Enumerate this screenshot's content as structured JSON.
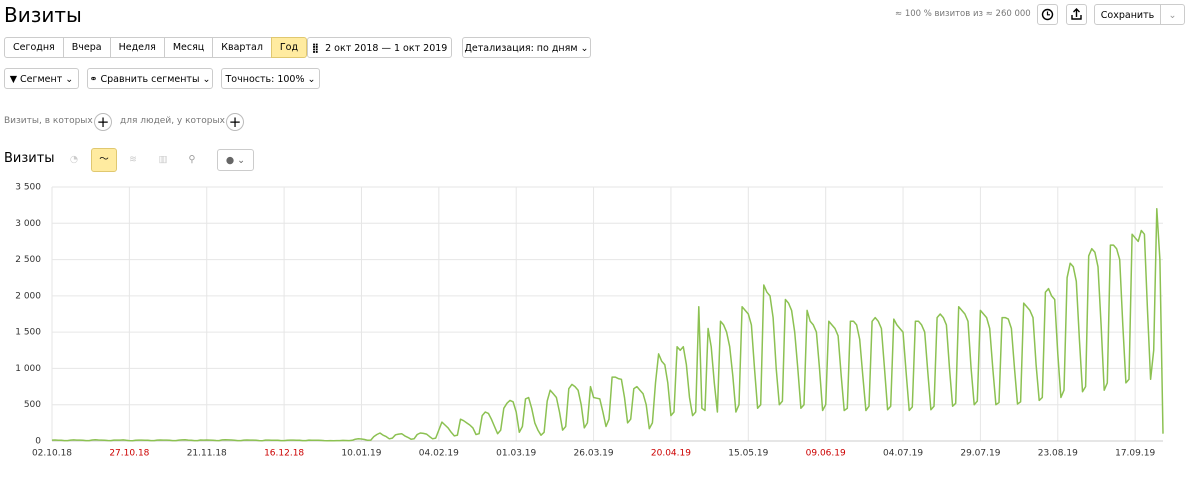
{
  "header": {
    "title": "Визиты",
    "sample": "≈ 100 % визитов из ≈ 260 000",
    "save": "Сохранить"
  },
  "periods": [
    "Сегодня",
    "Вчера",
    "Неделя",
    "Месяц",
    "Квартал",
    "Год"
  ],
  "date_range": "2 окт 2018 — 1 окт 2019",
  "detail": "Детализация: по дням",
  "segment": "Сегмент",
  "compare": "Сравнить сегменты",
  "accuracy": "Точность: 100%",
  "conditions": {
    "visits": "Визиты, в которых",
    "people": "для людей, у которых"
  },
  "chart_data": {
    "type": "line",
    "title": "Визиты",
    "color": "#8cc152",
    "grid": true,
    "xlim": [
      0,
      359
    ],
    "ylim": [
      0,
      3500
    ],
    "yticks": [
      0,
      500,
      {
        "value": 1000,
        "label": "1 000"
      },
      {
        "value": 1500,
        "label": "1 500"
      },
      {
        "value": 2000,
        "label": "2 000"
      },
      {
        "value": 2500,
        "label": "2 500"
      },
      {
        "value": 3000,
        "label": "3 000"
      },
      {
        "value": 3500,
        "label": "3 500"
      }
    ],
    "xticks": [
      {
        "value": 0,
        "label": "02.10.18",
        "color": "#333333"
      },
      {
        "value": 25,
        "label": "27.10.18",
        "color": "#cc0000"
      },
      {
        "value": 50,
        "label": "21.11.18",
        "color": "#333333"
      },
      {
        "value": 75,
        "label": "16.12.18",
        "color": "#cc0000"
      },
      {
        "value": 100,
        "label": "10.01.19",
        "color": "#333333"
      },
      {
        "value": 125,
        "label": "04.02.19",
        "color": "#333333"
      },
      {
        "value": 150,
        "label": "01.03.19",
        "color": "#333333"
      },
      {
        "value": 175,
        "label": "26.03.19",
        "color": "#333333"
      },
      {
        "value": 200,
        "label": "20.04.19",
        "color": "#cc0000"
      },
      {
        "value": 225,
        "label": "15.05.19",
        "color": "#333333"
      },
      {
        "value": 250,
        "label": "09.06.19",
        "color": "#cc0000"
      },
      {
        "value": 275,
        "label": "04.07.19",
        "color": "#333333"
      },
      {
        "value": 300,
        "label": "29.07.19",
        "color": "#333333"
      },
      {
        "value": 325,
        "label": "23.08.19",
        "color": "#333333"
      },
      {
        "value": 350,
        "label": "17.09.19",
        "color": "#333333"
      }
    ],
    "x": [
      0,
      1,
      2,
      3,
      4,
      5,
      6,
      7,
      8,
      9,
      10,
      11,
      12,
      13,
      14,
      15,
      16,
      17,
      18,
      19,
      20,
      21,
      22,
      23,
      24,
      25,
      26,
      27,
      28,
      29,
      30,
      31,
      32,
      33,
      34,
      35,
      36,
      37,
      38,
      39,
      40,
      41,
      42,
      43,
      44,
      45,
      46,
      47,
      48,
      49,
      50,
      51,
      52,
      53,
      54,
      55,
      56,
      57,
      58,
      59,
      60,
      61,
      62,
      63,
      64,
      65,
      66,
      67,
      68,
      69,
      70,
      71,
      72,
      73,
      74,
      75,
      76,
      77,
      78,
      79,
      80,
      81,
      82,
      83,
      84,
      85,
      86,
      87,
      88,
      89,
      90,
      91,
      92,
      93,
      94,
      95,
      96,
      97,
      98,
      99,
      100,
      101,
      102,
      103,
      104,
      105,
      106,
      107,
      108,
      109,
      110,
      111,
      112,
      113,
      114,
      115,
      116,
      117,
      118,
      119,
      120,
      121,
      122,
      123,
      124,
      125,
      126,
      127,
      128,
      129,
      130,
      131,
      132,
      133,
      134,
      135,
      136,
      137,
      138,
      139,
      140,
      141,
      142,
      143,
      144,
      145,
      146,
      147,
      148,
      149,
      150,
      151,
      152,
      153,
      154,
      155,
      156,
      157,
      158,
      159,
      160,
      161,
      162,
      163,
      164,
      165,
      166,
      167,
      168,
      169,
      170,
      171,
      172,
      173,
      174,
      175,
      176,
      177,
      178,
      179,
      180,
      181,
      182,
      183,
      184,
      185,
      186,
      187,
      188,
      189,
      190,
      191,
      192,
      193,
      194,
      195,
      196,
      197,
      198,
      199,
      200,
      201,
      202,
      203,
      204,
      205,
      206,
      207,
      208,
      209,
      210,
      211,
      212,
      213,
      214,
      215,
      216,
      217,
      218,
      219,
      220,
      221,
      222,
      223,
      224,
      225,
      226,
      227,
      228,
      229,
      230,
      231,
      232,
      233,
      234,
      235,
      236,
      237,
      238,
      239,
      240,
      241,
      242,
      243,
      244,
      245,
      246,
      247,
      248,
      249,
      250,
      251,
      252,
      253,
      254,
      255,
      256,
      257,
      258,
      259,
      260,
      261,
      262,
      263,
      264,
      265,
      266,
      267,
      268,
      269,
      270,
      271,
      272,
      273,
      274,
      275,
      276,
      277,
      278,
      279,
      280,
      281,
      282,
      283,
      284,
      285,
      286,
      287,
      288,
      289,
      290,
      291,
      292,
      293,
      294,
      295,
      296,
      297,
      298,
      299,
      300,
      301,
      302,
      303,
      304,
      305,
      306,
      307,
      308,
      309,
      310,
      311,
      312,
      313,
      314,
      315,
      316,
      317,
      318,
      319,
      320,
      321,
      322,
      323,
      324,
      325,
      326,
      327,
      328,
      329,
      330,
      331,
      332,
      333,
      334,
      335,
      336,
      337,
      338,
      339,
      340,
      341,
      342,
      343,
      344,
      345,
      346,
      347,
      348,
      349,
      350,
      351,
      352,
      353,
      354,
      355,
      356,
      357,
      358,
      359
    ],
    "values": [
      12,
      14,
      11,
      9,
      5,
      6,
      13,
      15,
      13,
      12,
      10,
      6,
      5,
      14,
      16,
      14,
      13,
      11,
      7,
      6,
      12,
      13,
      12,
      15,
      10,
      5,
      4,
      11,
      12,
      13,
      11,
      9,
      6,
      5,
      12,
      14,
      12,
      13,
      10,
      5,
      6,
      13,
      15,
      16,
      12,
      11,
      6,
      5,
      14,
      13,
      14,
      12,
      10,
      7,
      6,
      15,
      16,
      15,
      14,
      11,
      6,
      5,
      13,
      14,
      13,
      12,
      10,
      5,
      4,
      12,
      12,
      11,
      10,
      9,
      6,
      5,
      11,
      13,
      12,
      11,
      10,
      5,
      6,
      12,
      11,
      10,
      9,
      8,
      5,
      4,
      6,
      3,
      5,
      6,
      8,
      7,
      6,
      10,
      25,
      30,
      28,
      20,
      10,
      12,
      60,
      90,
      110,
      80,
      60,
      30,
      40,
      85,
      95,
      100,
      70,
      50,
      25,
      30,
      90,
      110,
      105,
      95,
      60,
      30,
      40,
      150,
      260,
      220,
      180,
      120,
      70,
      80,
      300,
      280,
      250,
      220,
      180,
      90,
      100,
      350,
      400,
      380,
      300,
      200,
      100,
      150,
      450,
      520,
      560,
      540,
      400,
      120,
      200,
      580,
      600,
      450,
      250,
      150,
      80,
      120,
      550,
      700,
      650,
      600,
      400,
      150,
      200,
      720,
      780,
      750,
      700,
      500,
      180,
      250,
      750,
      600,
      590,
      580,
      400,
      200,
      300,
      880,
      880,
      860,
      850,
      600,
      250,
      300,
      720,
      750,
      700,
      650,
      500,
      170,
      250,
      800,
      1200,
      1100,
      1050,
      800,
      350,
      400,
      1300,
      1250,
      1300,
      1050,
      600,
      350,
      400,
      1850,
      450,
      420,
      1550,
      1300,
      800,
      400,
      1650,
      1600,
      1500,
      1300,
      900,
      400,
      500,
      1850,
      1800,
      1750,
      1600,
      1000,
      450,
      500,
      2150,
      2050,
      2000,
      1700,
      1000,
      500,
      550,
      1950,
      1900,
      1800,
      1500,
      1000,
      450,
      500,
      1800,
      1650,
      1600,
      1500,
      1000,
      420,
      500,
      1650,
      1600,
      1550,
      1450,
      900,
      420,
      450,
      1650,
      1650,
      1600,
      1400,
      900,
      420,
      480,
      1650,
      1700,
      1650,
      1550,
      1000,
      430,
      480,
      1680,
      1600,
      1550,
      1500,
      950,
      420,
      470,
      1650,
      1650,
      1600,
      1500,
      950,
      430,
      480,
      1700,
      1750,
      1700,
      1600,
      1000,
      480,
      520,
      1850,
      1800,
      1750,
      1650,
      1000,
      500,
      550,
      1800,
      1750,
      1700,
      1550,
      1000,
      500,
      530,
      1700,
      1700,
      1680,
      1550,
      1000,
      510,
      540,
      1900,
      1850,
      1800,
      1700,
      1050,
      560,
      600,
      2050,
      2100,
      2000,
      1950,
      1200,
      600,
      700,
      2250,
      2450,
      2400,
      2200,
      1400,
      680,
      750,
      2550,
      2650,
      2600,
      2400,
      1600,
      700,
      800,
      2700,
      2700,
      2650,
      2500,
      1600,
      800,
      850,
      2850,
      2800,
      2750,
      2900,
      2850,
      1800,
      850,
      1250,
      3200,
      2500,
      100
    ]
  }
}
